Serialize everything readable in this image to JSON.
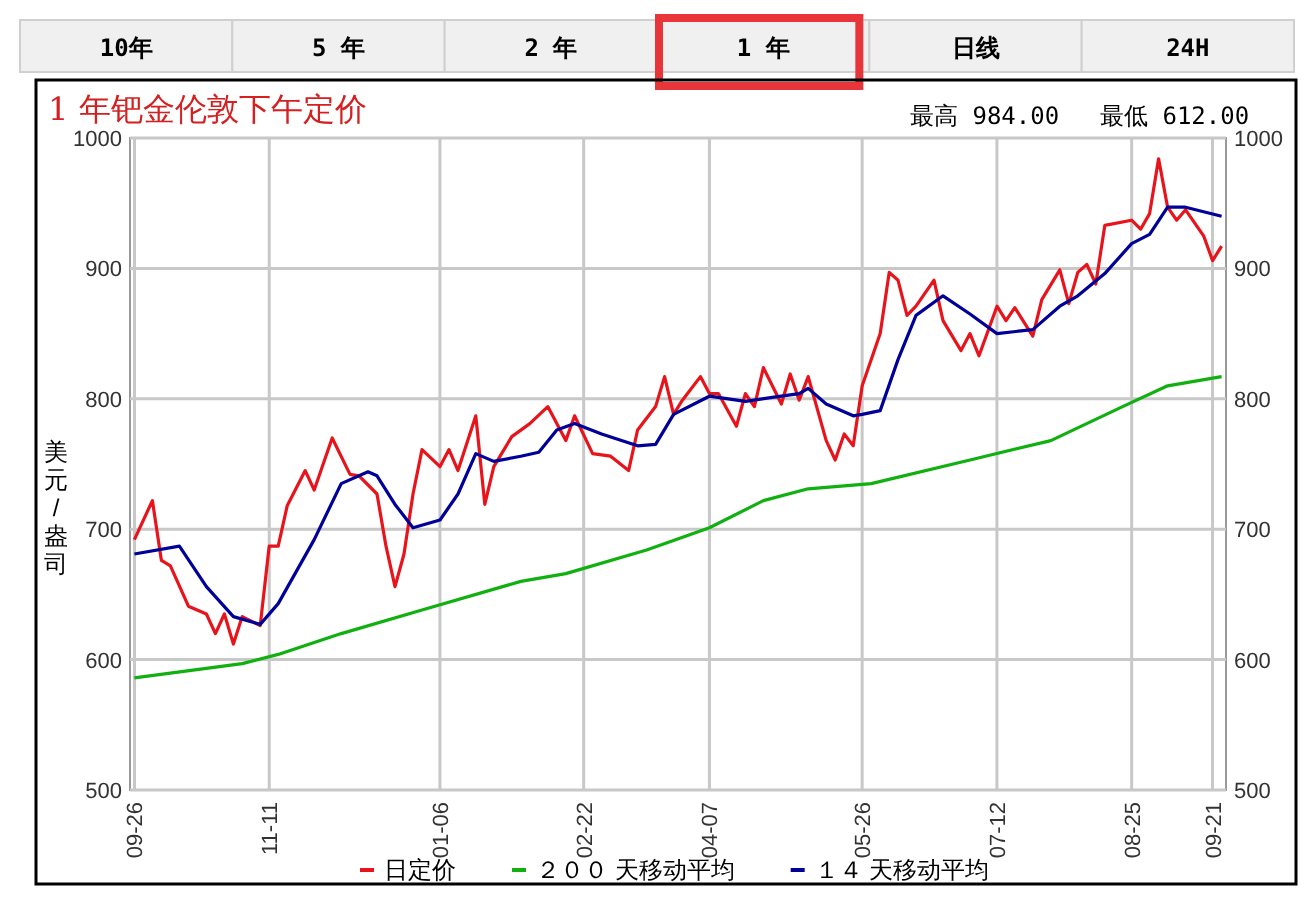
{
  "chart_data": {
    "type": "line",
    "title": "1 年钯金伦敦下午定价",
    "ylabel": "美元/盎司",
    "annotations": [
      "10年",
      "5 年",
      "2 年",
      "1 年",
      "日线",
      "24H",
      "最高 984.00",
      "最低 612.00"
    ],
    "categories": [
      "09-26",
      null,
      null,
      null,
      null,
      null,
      null,
      null,
      null,
      null,
      null,
      null,
      null,
      null,
      null,
      "11-11",
      null,
      null,
      null,
      null,
      null,
      null,
      null,
      null,
      null,
      null,
      null,
      null,
      null,
      null,
      null,
      null,
      null,
      null,
      "01-06",
      null,
      null,
      null,
      null,
      null,
      null,
      null,
      null,
      null,
      null,
      null,
      null,
      null,
      null,
      null,
      "02-22",
      null,
      null,
      null,
      null,
      null,
      null,
      null,
      null,
      null,
      null,
      null,
      null,
      null,
      "04-07",
      null,
      null,
      null,
      null,
      null,
      null,
      null,
      null,
      null,
      null,
      null,
      null,
      null,
      null,
      null,
      null,
      "05-26",
      null,
      null,
      null,
      null,
      null,
      null,
      null,
      null,
      null,
      null,
      null,
      null,
      null,
      null,
      "07-12",
      null,
      null,
      null,
      null,
      null,
      null,
      null,
      null,
      null,
      null,
      null,
      null,
      null,
      null,
      "08-25",
      null,
      null,
      null,
      null,
      null,
      null,
      null,
      null,
      "09-21",
      null
    ],
    "ylim": [
      500,
      1000
    ],
    "yticks": [
      500,
      600,
      700,
      800,
      900,
      1000
    ],
    "y2lim": [
      500,
      1000
    ],
    "y2ticks": [
      500,
      600,
      700,
      800,
      900,
      1000
    ],
    "grid": true,
    "legend": "bottom",
    "series": [
      {
        "name": "日定价",
        "color": "#e8141c",
        "values": [
          692,
          null,
          722,
          676,
          672,
          null,
          641,
          null,
          635,
          620,
          635,
          612,
          633,
          null,
          626,
          687,
          687,
          718,
          null,
          745,
          730,
          null,
          770,
          null,
          742,
          741,
          null,
          727,
          687,
          656,
          681,
          727,
          761,
          null,
          748,
          761,
          745,
          null,
          787,
          719,
          748,
          null,
          771,
          null,
          781,
          null,
          794,
          null,
          768,
          787,
          null,
          758,
          null,
          756,
          null,
          745,
          776,
          null,
          794,
          817,
          788,
          799,
          null,
          817,
          804,
          804,
          null,
          779,
          804,
          794,
          824,
          null,
          796,
          819,
          799,
          817,
          null,
          768,
          753,
          773,
          764,
          810,
          null,
          850,
          897,
          891,
          864,
          871,
          null,
          891,
          860,
          null,
          837,
          850,
          833,
          null,
          871,
          860,
          870,
          null,
          848,
          876,
          null,
          899,
          873,
          897,
          903,
          888,
          933,
          null,
          null,
          937,
          930,
          942,
          984,
          947,
          937,
          945,
          null,
          925,
          906,
          917
        ]
      },
      {
        "name": "２００ 天移动平均",
        "color": "#10b010",
        "values": [
          586,
          null,
          null,
          null,
          null,
          null,
          null,
          null,
          null,
          null,
          null,
          null,
          597,
          null,
          null,
          null,
          604,
          null,
          null,
          null,
          null,
          null,
          null,
          620,
          null,
          null,
          null,
          null,
          null,
          null,
          null,
          null,
          638,
          null,
          null,
          null,
          null,
          null,
          null,
          null,
          null,
          null,
          null,
          660,
          null,
          null,
          null,
          null,
          666,
          null,
          null,
          null,
          null,
          null,
          null,
          null,
          null,
          684,
          null,
          null,
          null,
          null,
          null,
          null,
          701,
          null,
          null,
          null,
          null,
          null,
          722,
          null,
          null,
          null,
          null,
          731,
          null,
          null,
          null,
          null,
          null,
          null,
          735,
          null,
          null,
          null,
          null,
          null,
          null,
          null,
          null,
          null,
          null,
          753,
          null,
          null,
          null,
          null,
          null,
          null,
          null,
          null,
          768,
          null,
          null,
          null,
          null,
          null,
          null,
          null,
          794,
          null,
          null,
          null,
          null,
          810,
          null,
          null,
          null,
          null,
          null,
          817
        ]
      },
      {
        "name": "１４ 天移动平均",
        "color": "#000099",
        "values": [
          681,
          null,
          null,
          null,
          null,
          687,
          null,
          null,
          656,
          null,
          null,
          633,
          null,
          null,
          627,
          null,
          643,
          null,
          null,
          null,
          692,
          null,
          null,
          735,
          null,
          null,
          744,
          741,
          null,
          719,
          null,
          701,
          null,
          null,
          707,
          null,
          727,
          null,
          758,
          null,
          752,
          null,
          null,
          756,
          null,
          759,
          null,
          776,
          null,
          781,
          null,
          null,
          773,
          null,
          null,
          null,
          764,
          null,
          765,
          null,
          788,
          null,
          null,
          null,
          802,
          null,
          null,
          null,
          798,
          null,
          null,
          801,
          null,
          null,
          804,
          808,
          null,
          796,
          null,
          null,
          787,
          788,
          null,
          791,
          null,
          830,
          null,
          864,
          null,
          null,
          879,
          null,
          null,
          865,
          null,
          null,
          850,
          null,
          null,
          null,
          853,
          null,
          null,
          871,
          null,
          879,
          null,
          null,
          896,
          null,
          null,
          919,
          null,
          926,
          null,
          947,
          null,
          947,
          null,
          null,
          null,
          940
        ]
      }
    ]
  }
}
